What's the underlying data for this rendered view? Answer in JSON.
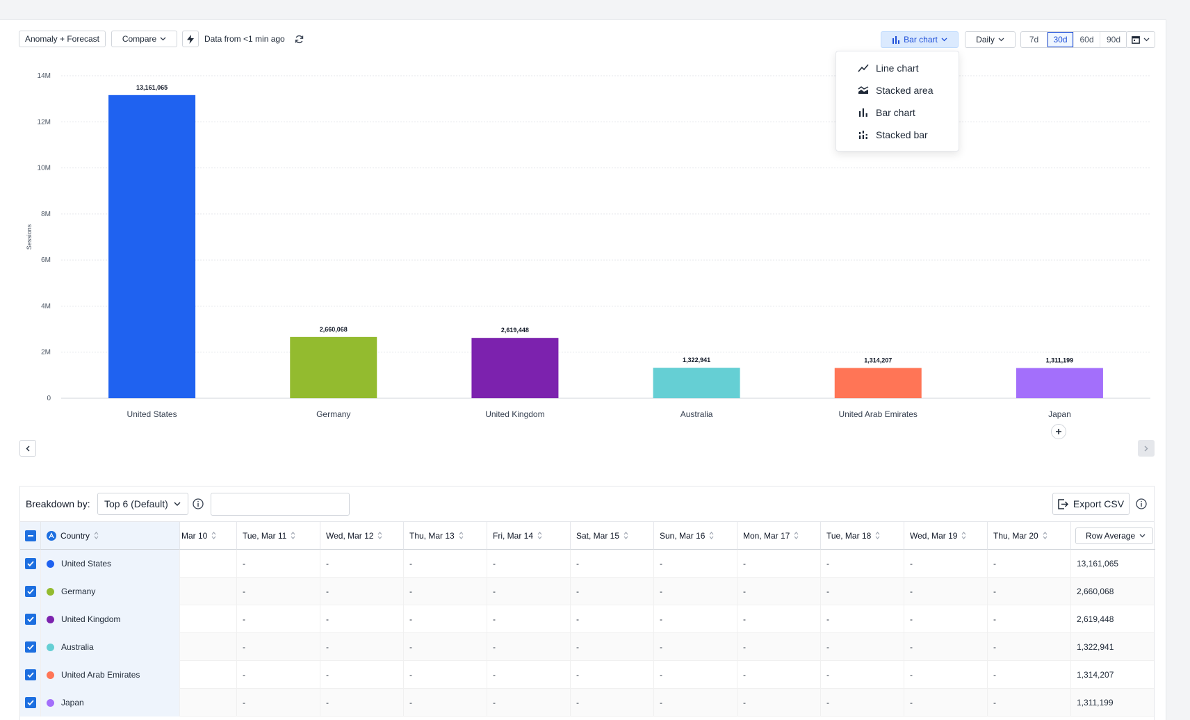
{
  "toolbar": {
    "anomaly_label": "Anomaly + Forecast",
    "compare_label": "Compare",
    "data_status": "Data from <1 min ago",
    "chart_type_label": "Bar chart",
    "interval_label": "Daily",
    "ranges": [
      "7d",
      "30d",
      "60d",
      "90d"
    ],
    "active_range": "30d"
  },
  "chart_type_menu": {
    "items": [
      {
        "label": "Line chart",
        "icon": "line-chart-icon"
      },
      {
        "label": "Stacked area",
        "icon": "stacked-area-icon"
      },
      {
        "label": "Bar chart",
        "icon": "bar-chart-icon"
      },
      {
        "label": "Stacked bar",
        "icon": "stacked-bar-icon"
      }
    ]
  },
  "chart_data": {
    "type": "bar",
    "categories": [
      "United States",
      "Germany",
      "United Kingdom",
      "Australia",
      "United Arab Emirates",
      "Japan"
    ],
    "values": [
      13161065,
      2660068,
      2619448,
      1322941,
      1314207,
      1311199
    ],
    "value_labels": [
      "13,161,065",
      "2,660,068",
      "2,619,448",
      "1,322,941",
      "1,314,207",
      "1,311,199"
    ],
    "colors": [
      "#1f62f0",
      "#93bb2f",
      "#7c22ae",
      "#65cfd4",
      "#ff7556",
      "#a36ffb"
    ],
    "ylabel": "Sessions",
    "ylim": [
      0,
      14000000
    ],
    "yticks": [
      0,
      2000000,
      4000000,
      6000000,
      8000000,
      10000000,
      12000000,
      14000000
    ],
    "ytick_labels": [
      "0",
      "2M",
      "4M",
      "6M",
      "8M",
      "10M",
      "12M",
      "14M"
    ],
    "grid": true
  },
  "table": {
    "breakdown_label": "Breakdown by:",
    "breakdown_value": "Top 6 (Default)",
    "search_placeholder": "",
    "export_label": "Export CSV",
    "country_header": "Country",
    "date_headers": [
      "Mar 10",
      "Tue, Mar 11",
      "Wed, Mar 12",
      "Thu, Mar 13",
      "Fri, Mar 14",
      "Sat, Mar 15",
      "Sun, Mar 16",
      "Mon, Mar 17",
      "Tue, Mar 18",
      "Wed, Mar 19",
      "Thu, Mar 20"
    ],
    "avg_header": "Row Average",
    "empty_value": "-",
    "rows": [
      {
        "country": "United States",
        "color": "#1f62f0",
        "average": "13,161,065"
      },
      {
        "country": "Germany",
        "color": "#93bb2f",
        "average": "2,660,068"
      },
      {
        "country": "United Kingdom",
        "color": "#7c22ae",
        "average": "2,619,448"
      },
      {
        "country": "Australia",
        "color": "#65cfd4",
        "average": "1,322,941"
      },
      {
        "country": "United Arab Emirates",
        "color": "#ff7556",
        "average": "1,314,207"
      },
      {
        "country": "Japan",
        "color": "#a36ffb",
        "average": "1,311,199"
      }
    ]
  }
}
